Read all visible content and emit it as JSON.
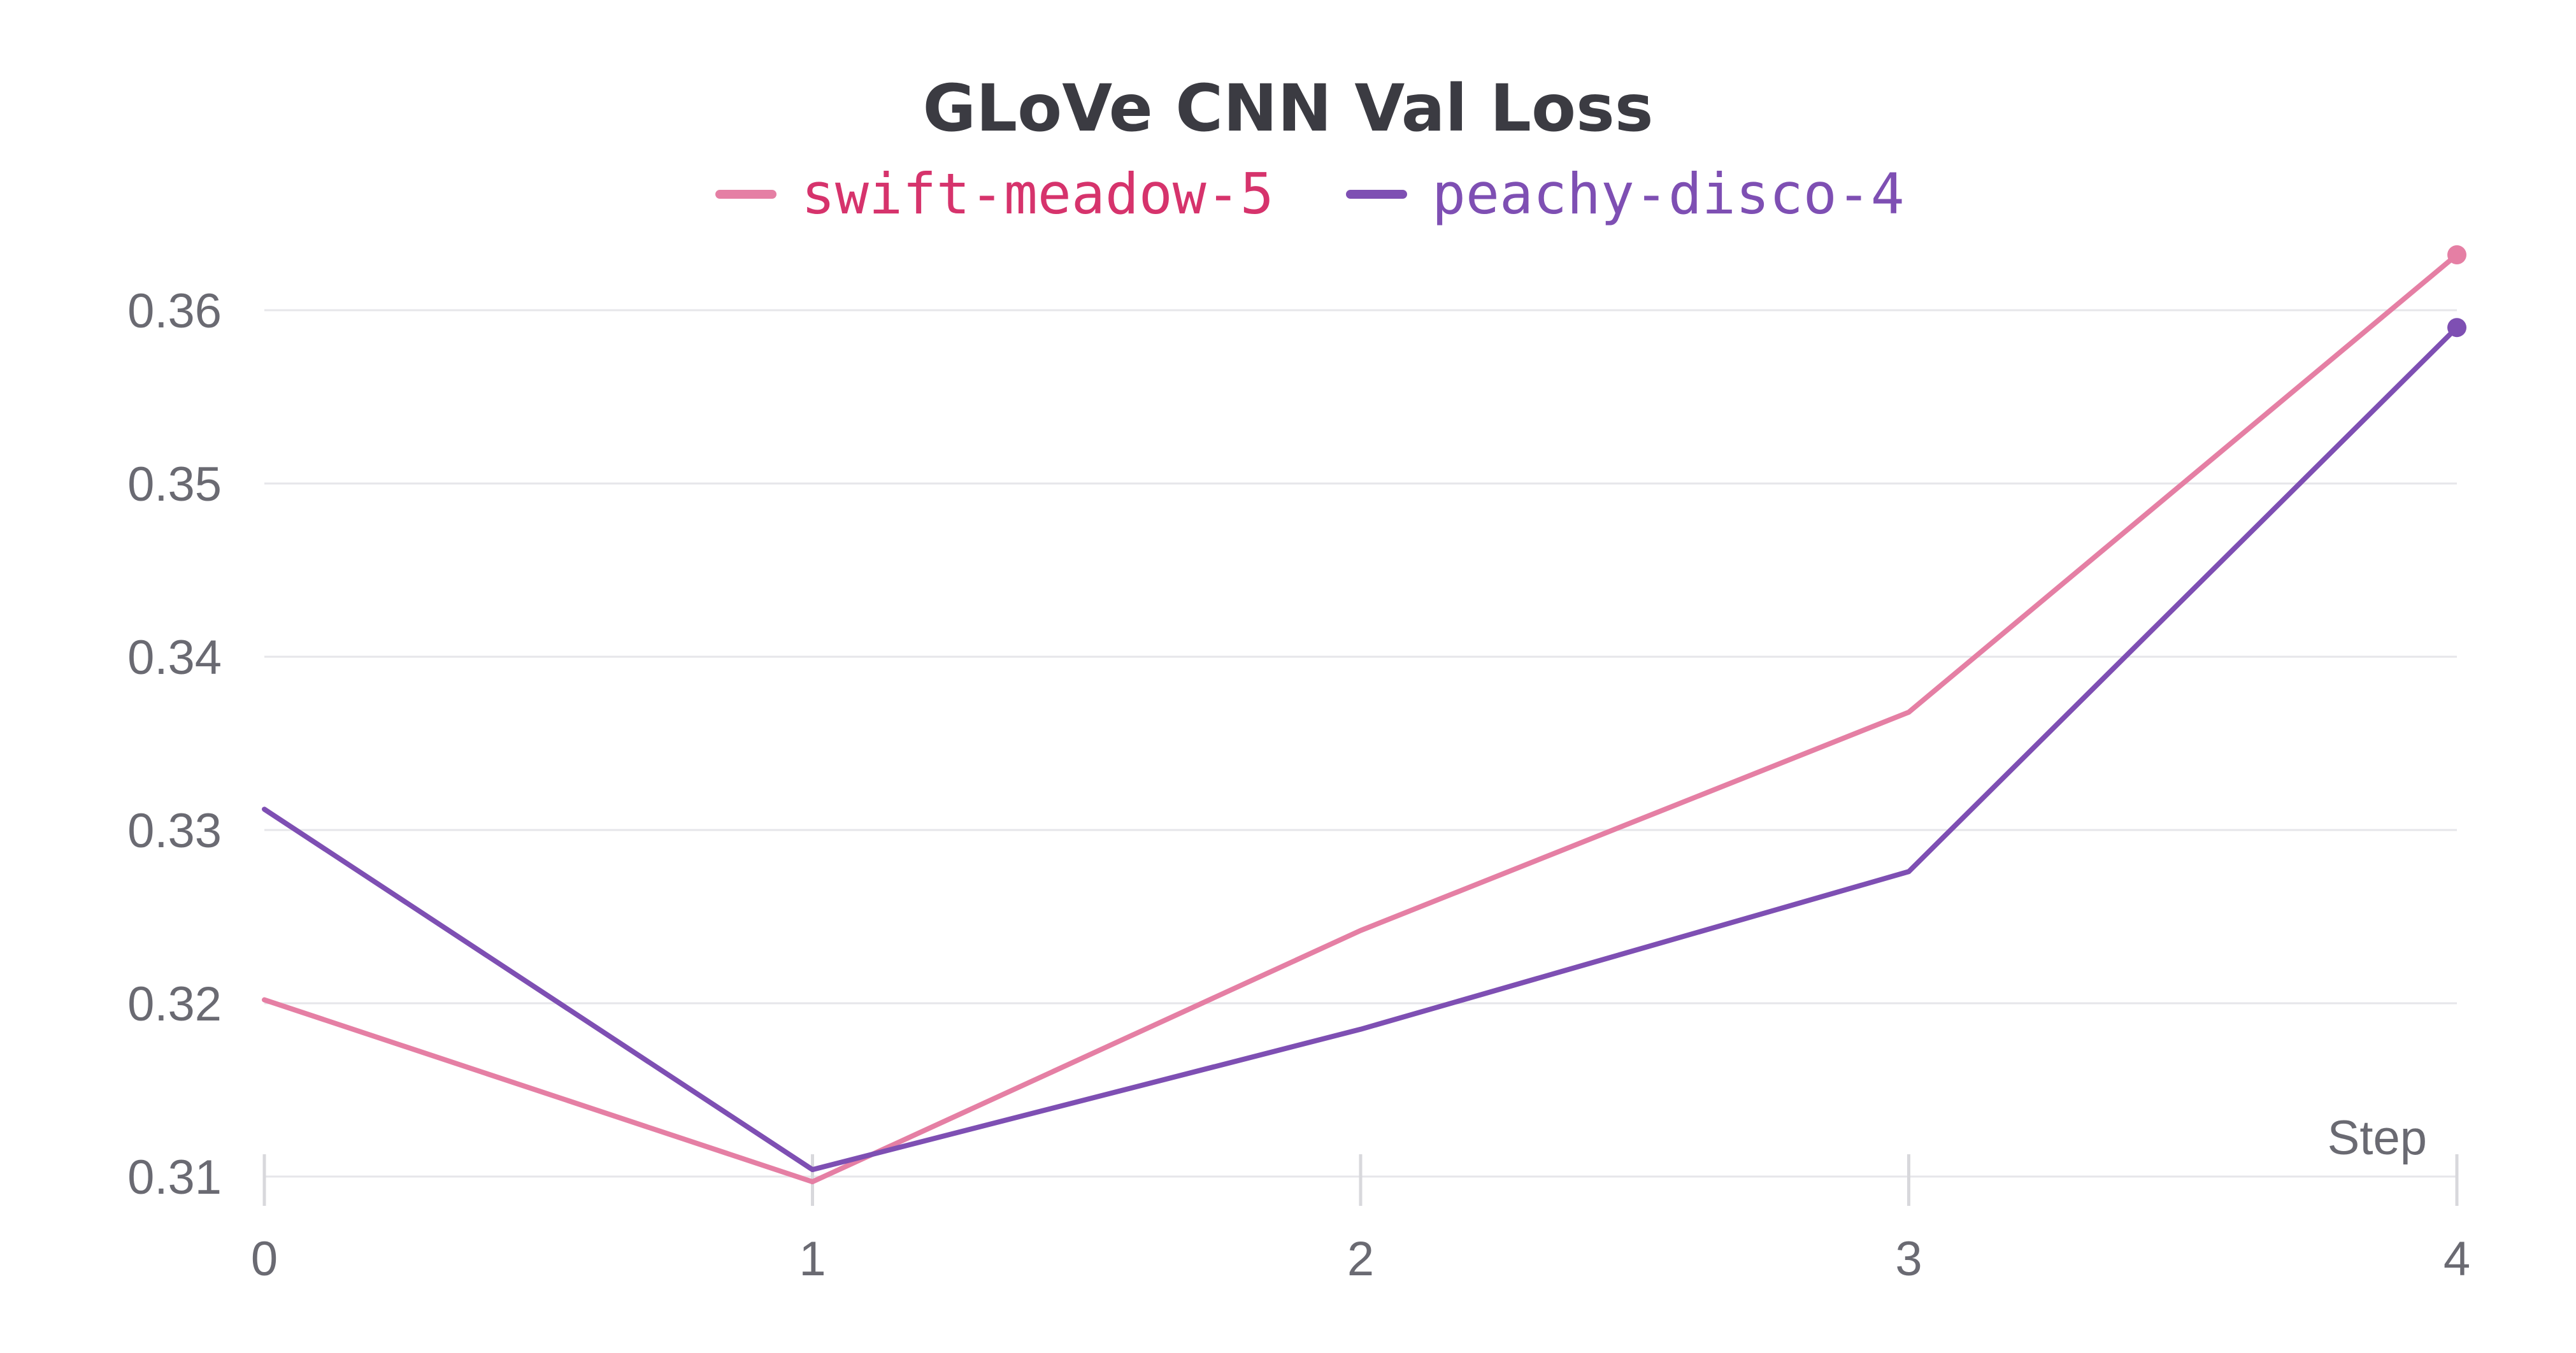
{
  "chart_data": {
    "type": "line",
    "title": "GLoVe CNN Val Loss",
    "xlabel": "Step",
    "ylabel": "",
    "x": [
      0,
      1,
      2,
      3,
      4
    ],
    "xlim": [
      0,
      4
    ],
    "ylim": [
      0.31,
      0.36
    ],
    "yticks": [
      0.31,
      0.32,
      0.33,
      0.34,
      0.35,
      0.36
    ],
    "ytick_labels": [
      "0.31",
      "0.32",
      "0.33",
      "0.34",
      "0.35",
      "0.36"
    ],
    "xtick_labels": [
      "0",
      "1",
      "2",
      "3",
      "4"
    ],
    "grid": true,
    "legend_position": "top-center",
    "series": [
      {
        "name": "swift-meadow-5",
        "color": "#e57fa4",
        "label_color": "#d6336c",
        "values": [
          0.3202,
          0.3097,
          0.3242,
          0.3368,
          0.3632
        ]
      },
      {
        "name": "peachy-disco-4",
        "color": "#7e4fb3",
        "label_color": "#7e4fb3",
        "values": [
          0.3312,
          0.3104,
          0.3185,
          0.3276,
          0.359
        ]
      }
    ]
  }
}
